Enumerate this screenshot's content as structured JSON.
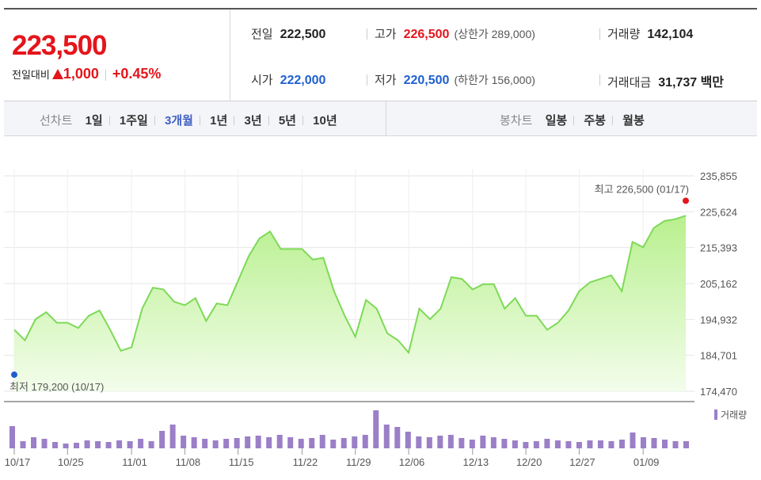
{
  "quote": {
    "price": "223,500",
    "change_label": "전일대비",
    "change_value": "1,000",
    "change_percent": "+0.45%",
    "prev_close_label": "전일",
    "prev_close": "222,500",
    "high_label": "고가",
    "high": "226,500",
    "upper_limit": "(상한가 289,000)",
    "volume_label": "거래량",
    "volume": "142,104",
    "open_label": "시가",
    "open": "222,000",
    "low_label": "저가",
    "low": "220,500",
    "lower_limit": "(하한가 156,000)",
    "amount_label": "거래대금",
    "amount": "31,737 백만"
  },
  "toolbar": {
    "line_label": "선차트",
    "line_options": [
      "1일",
      "1주일",
      "3개월",
      "1년",
      "3년",
      "5년",
      "10년"
    ],
    "active_line_option": "3개월",
    "candle_label": "봉차트",
    "candle_options": [
      "일봉",
      "주봉",
      "월봉"
    ]
  },
  "colors": {
    "up": "#e4151b",
    "down": "#1f5fcf",
    "line": "#7ed957",
    "volume": "#9b7fc7"
  },
  "chart_data": {
    "type": "area",
    "y_ticks": [
      "235,855",
      "225,624",
      "215,393",
      "205,162",
      "194,932",
      "184,701",
      "174,470"
    ],
    "ylim": [
      174470,
      235855
    ],
    "x_ticks": [
      "10/17",
      "10/25",
      "11/01",
      "11/08",
      "11/15",
      "11/22",
      "11/29",
      "12/06",
      "12/13",
      "12/20",
      "12/27",
      "01/09"
    ],
    "grid": true,
    "high_annotation": "최고 226,500 (01/17)",
    "low_annotation": "최저 179,200 (10/17)",
    "volume_legend": "거래량",
    "series": [
      {
        "values": [
          192000,
          189000,
          195000,
          197000,
          194000,
          194000,
          192500,
          196000,
          197500,
          192000,
          186000,
          187000,
          198000,
          204000,
          203500,
          200000,
          199000,
          201000,
          194500,
          199500,
          199000,
          206000,
          213000,
          218000,
          220000,
          215000,
          215000,
          215000,
          212000,
          212500,
          203000,
          196000,
          190000,
          200500,
          198000,
          191000,
          189000,
          185500,
          198000,
          195000,
          198000,
          207000,
          206500,
          203500,
          205000,
          205000,
          198000,
          201000,
          196000,
          196000,
          192000,
          194000,
          197500,
          203000,
          205500,
          206500,
          207500,
          203000,
          217000,
          215500,
          221000,
          223000,
          223500,
          224500
        ]
      }
    ],
    "volume_values": [
      140,
      45,
      70,
      60,
      40,
      30,
      35,
      50,
      45,
      40,
      50,
      45,
      60,
      45,
      110,
      150,
      80,
      70,
      60,
      50,
      60,
      65,
      75,
      80,
      70,
      85,
      70,
      60,
      65,
      85,
      55,
      65,
      75,
      85,
      240,
      150,
      135,
      105,
      75,
      70,
      80,
      85,
      65,
      55,
      80,
      70,
      60,
      50,
      40,
      45,
      60,
      50,
      45,
      40,
      50,
      50,
      45,
      55,
      100,
      70,
      65,
      55,
      45,
      45
    ]
  }
}
